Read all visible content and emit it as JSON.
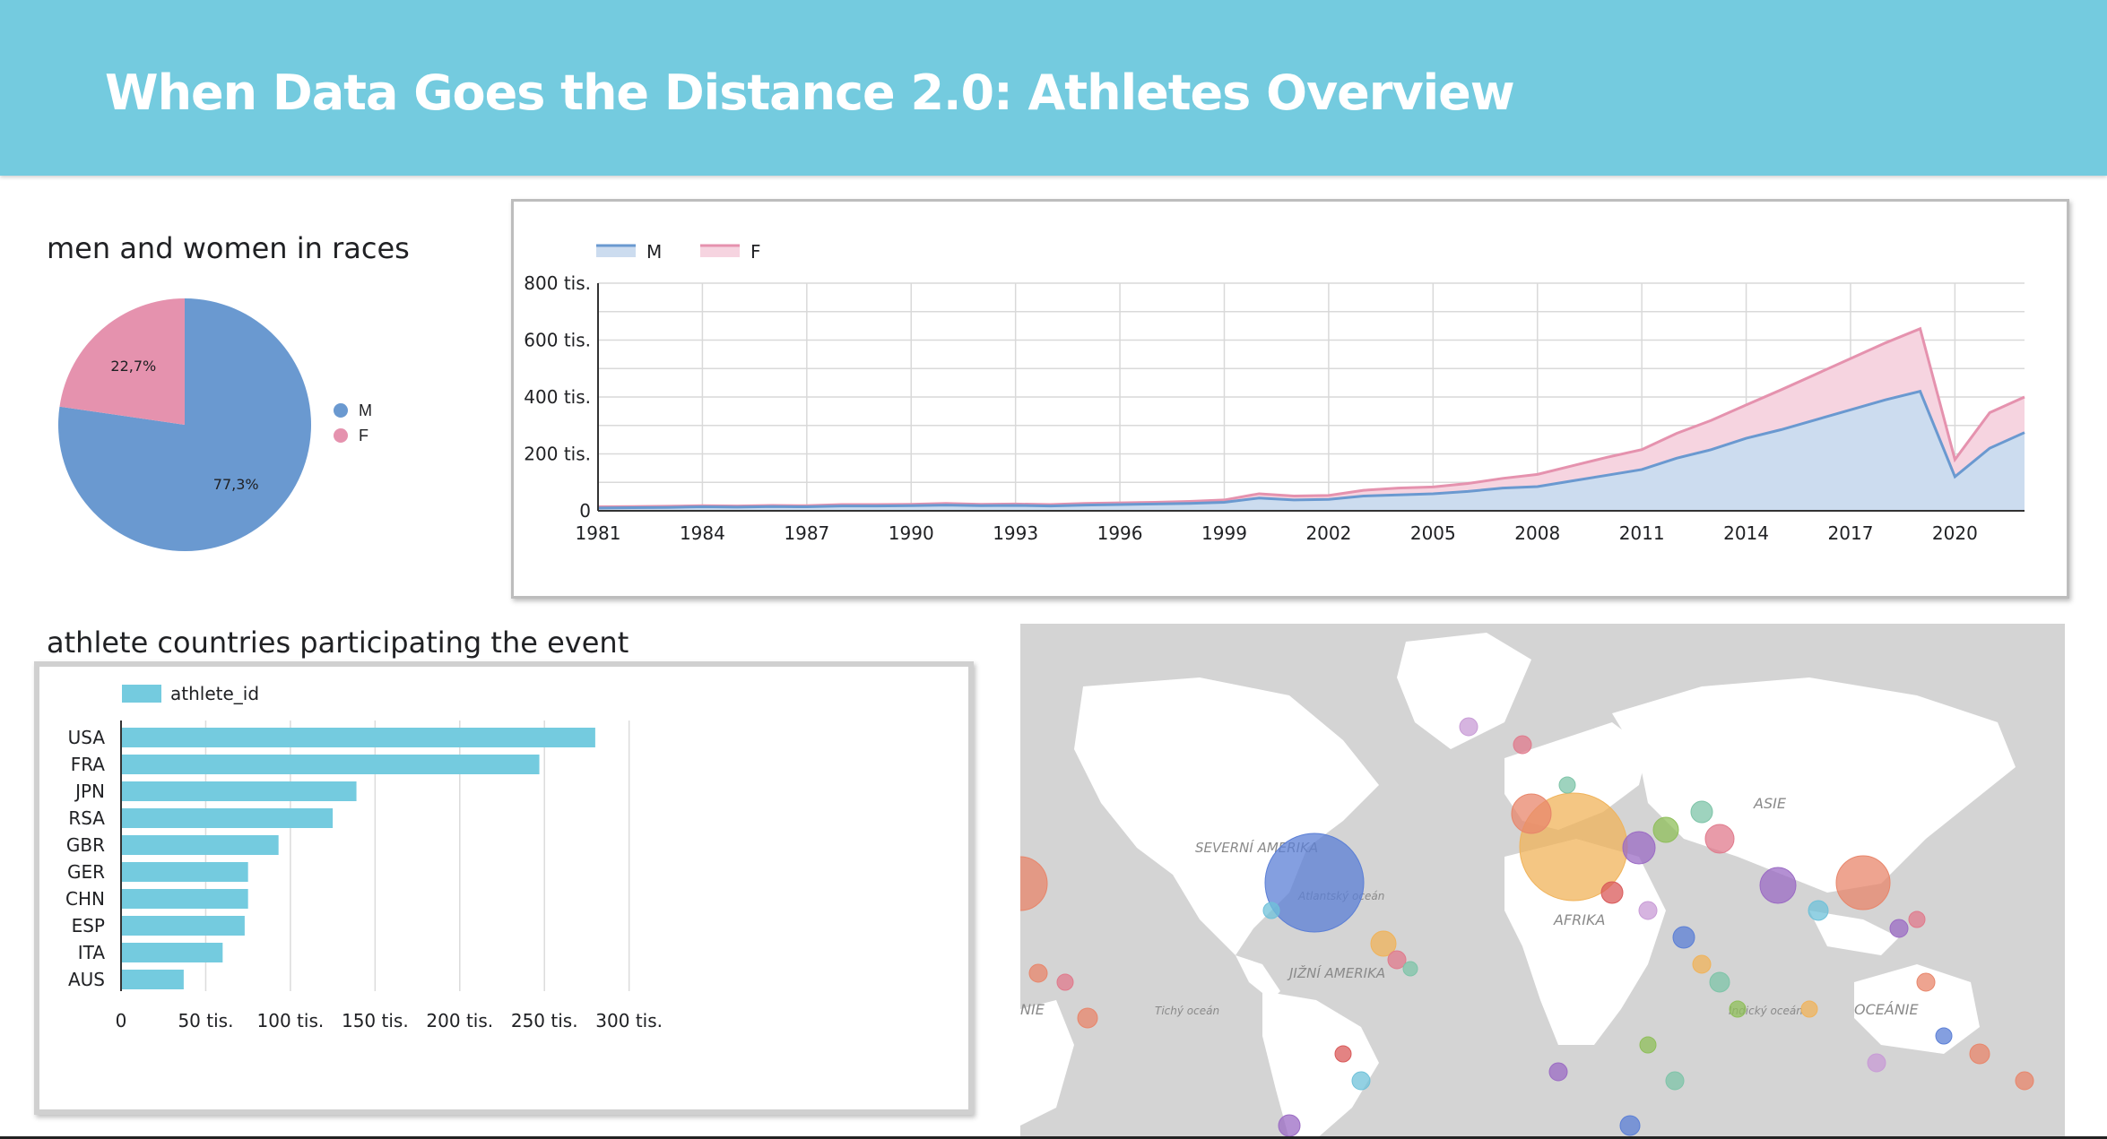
{
  "header": {
    "title": "When Data Goes the Distance 2.0: Athletes Overview"
  },
  "colors": {
    "male": "#6a99d0",
    "female": "#e592ae",
    "bar": "#74cbdf",
    "header": "#74cbdf"
  },
  "pie_section": {
    "title": "men and women in races"
  },
  "bar_section": {
    "title": "athlete countries participating the event"
  },
  "map": {
    "labels": [
      "SEVERNÍ AMERIKA",
      "JIŽNÍ AMERIKA",
      "AFRIKA",
      "ASIE",
      "OCEÁNIE",
      "NIE",
      "Atlantský oceán",
      "Indický oceán",
      "Tichý oceán"
    ],
    "bubble_colors": [
      "#e8866b",
      "#5b7fd6",
      "#9b6bc4",
      "#7ec4a8",
      "#e07a8c",
      "#f0b35a",
      "#6fc1d9",
      "#c89bd6",
      "#8fbf5a",
      "#d95a5a"
    ]
  },
  "chart_data": [
    {
      "type": "pie",
      "title": "men and women in races",
      "labels": [
        "M",
        "F"
      ],
      "values": [
        77.3,
        22.7
      ],
      "value_labels": [
        "77,3%",
        "22,7%"
      ],
      "colors": [
        "#6a99d0",
        "#e592ae"
      ],
      "legend": "right"
    },
    {
      "type": "area",
      "title": "",
      "legend": "top-left",
      "grid": true,
      "x_tick_labels": [
        "1981",
        "1984",
        "1987",
        "1990",
        "1993",
        "1996",
        "1999",
        "2002",
        "2005",
        "2008",
        "2011",
        "2014",
        "2017",
        "2020"
      ],
      "y_tick_labels": [
        "0",
        "200 tis.",
        "400 tis.",
        "600 tis.",
        "800 tis."
      ],
      "ylim": [
        0,
        800000
      ],
      "xlim": [
        1981,
        2022
      ],
      "x": [
        1981,
        1982,
        1983,
        1984,
        1985,
        1986,
        1987,
        1988,
        1989,
        1990,
        1991,
        1992,
        1993,
        1994,
        1995,
        1996,
        1997,
        1998,
        1999,
        2000,
        2001,
        2002,
        2003,
        2004,
        2005,
        2006,
        2007,
        2008,
        2009,
        2010,
        2011,
        2012,
        2013,
        2014,
        2015,
        2016,
        2017,
        2018,
        2019,
        2020,
        2021,
        2022
      ],
      "series": [
        {
          "name": "M",
          "values": [
            10000,
            11000,
            12000,
            14000,
            13000,
            15000,
            14000,
            17000,
            17000,
            18000,
            20000,
            18000,
            19000,
            17000,
            20000,
            22000,
            24000,
            26000,
            30000,
            45000,
            38000,
            40000,
            52000,
            56000,
            60000,
            68000,
            80000,
            85000,
            105000,
            125000,
            145000,
            185000,
            215000,
            255000,
            285000,
            320000,
            355000,
            390000,
            420000,
            120000,
            220000,
            275000
          ]
        },
        {
          "name": "F",
          "values": [
            14000,
            15000,
            16000,
            18000,
            17000,
            19000,
            18000,
            22000,
            22000,
            23000,
            26000,
            23000,
            24000,
            22000,
            26000,
            28000,
            30000,
            33000,
            38000,
            60000,
            52000,
            54000,
            72000,
            80000,
            84000,
            96000,
            114000,
            128000,
            158000,
            188000,
            215000,
            272000,
            318000,
            372000,
            425000,
            480000,
            535000,
            590000,
            640000,
            180000,
            345000,
            400000
          ]
        }
      ]
    },
    {
      "type": "bar",
      "orientation": "horizontal",
      "title": "athlete countries participating the event",
      "legend": "top-left",
      "series": [
        {
          "name": "athlete_id",
          "values": [
            280000,
            247000,
            139000,
            125000,
            93000,
            75000,
            75000,
            73000,
            60000,
            37000
          ]
        }
      ],
      "categories": [
        "USA",
        "FRA",
        "JPN",
        "RSA",
        "GBR",
        "GER",
        "CHN",
        "ESP",
        "ITA",
        "AUS"
      ],
      "x_tick_labels": [
        "0",
        "50 tis.",
        "100 tis.",
        "150 tis.",
        "200 tis.",
        "250 tis.",
        "300 tis."
      ],
      "xlim": [
        0,
        315000
      ],
      "grid": true
    }
  ]
}
